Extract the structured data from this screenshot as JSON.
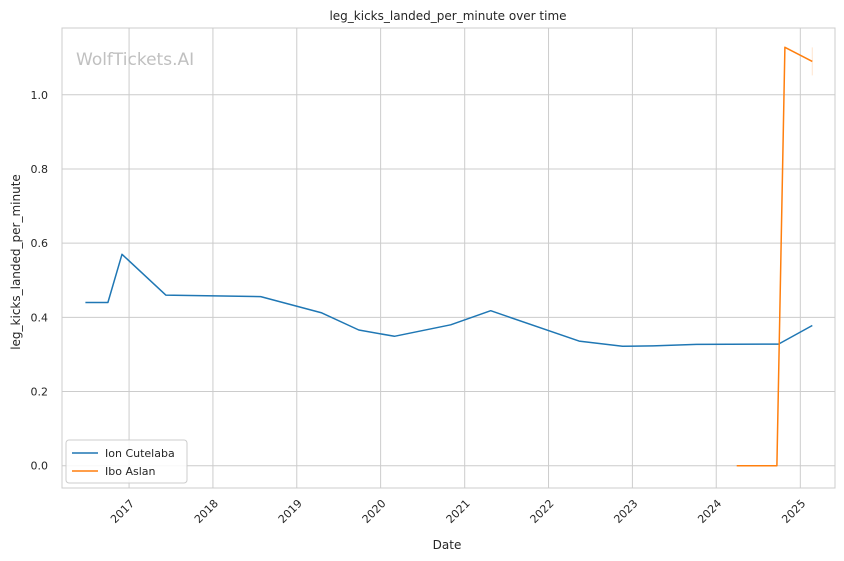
{
  "chart_data": {
    "type": "line",
    "title": "leg_kicks_landed_per_minute over time",
    "xlabel": "Date",
    "ylabel": "leg_kicks_landed_per_minute",
    "watermark": "WolfTickets.AI",
    "ylim": [
      -0.06,
      1.18
    ],
    "xlim": [
      "2016-03-15",
      "2025-06-01"
    ],
    "x_tick_labels": [
      "2017",
      "2018",
      "2019",
      "2020",
      "2021",
      "2022",
      "2023",
      "2024",
      "2025"
    ],
    "y_tick_labels": [
      "0.0",
      "0.2",
      "0.4",
      "0.6",
      "0.8",
      "1.0"
    ],
    "grid": true,
    "legend_position": "lower-left",
    "series": [
      {
        "name": "Ion Cutelaba",
        "color": "#1f77b4",
        "points": [
          {
            "x": "2016-06-25",
            "y": 0.44
          },
          {
            "x": "2016-10-01",
            "y": 0.44
          },
          {
            "x": "2016-12-01",
            "y": 0.57
          },
          {
            "x": "2017-06-10",
            "y": 0.46
          },
          {
            "x": "2018-07-28",
            "y": 0.456
          },
          {
            "x": "2019-04-20",
            "y": 0.412
          },
          {
            "x": "2019-09-28",
            "y": 0.366
          },
          {
            "x": "2020-03-01",
            "y": 0.349
          },
          {
            "x": "2020-11-01",
            "y": 0.38
          },
          {
            "x": "2021-04-24",
            "y": 0.418
          },
          {
            "x": "2022-05-14",
            "y": 0.336
          },
          {
            "x": "2022-11-19",
            "y": 0.322
          },
          {
            "x": "2023-04-01",
            "y": 0.323
          },
          {
            "x": "2023-10-07",
            "y": 0.327
          },
          {
            "x": "2024-09-28",
            "y": 0.328
          },
          {
            "x": "2025-02-22",
            "y": 0.378
          }
        ]
      },
      {
        "name": "Ibo Aslan",
        "color": "#ff7f0e",
        "points": [
          {
            "x": "2024-03-30",
            "y": 0.0
          },
          {
            "x": "2024-09-21",
            "y": 0.0
          },
          {
            "x": "2024-10-26",
            "y": 1.128
          },
          {
            "x": "2025-02-22",
            "y": 1.09
          }
        ]
      }
    ]
  }
}
